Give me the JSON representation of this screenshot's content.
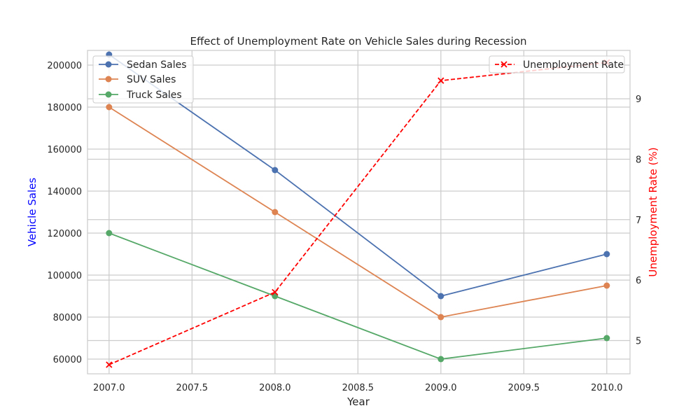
{
  "chart_data": {
    "type": "line",
    "title": "Effect of Unemployment Rate on Vehicle Sales during Recession",
    "xlabel": "Year",
    "ylabel": "Vehicle Sales",
    "y2label": "Unemployment Rate (%)",
    "x": [
      2007,
      2008,
      2009,
      2010
    ],
    "xlim": [
      2006.87,
      2010.14
    ],
    "ylim": [
      53000,
      207000
    ],
    "y2lim": [
      4.45,
      9.8
    ],
    "x_ticks": [
      "2007.0",
      "2007.5",
      "2008.0",
      "2008.5",
      "2009.0",
      "2009.5",
      "2010.0"
    ],
    "y_ticks": [
      "60000",
      "80000",
      "100000",
      "120000",
      "140000",
      "160000",
      "180000",
      "200000"
    ],
    "y2_ticks": [
      "5",
      "6",
      "7",
      "8",
      "9"
    ],
    "grid": true,
    "legend_left_position": "upper left",
    "legend_right_position": "upper right",
    "series": [
      {
        "name": "Sedan Sales",
        "axis": "left",
        "color": "#4c72b0",
        "marker": "circle",
        "style": "solid",
        "values": [
          205000,
          150000,
          90000,
          110000
        ]
      },
      {
        "name": "SUV Sales",
        "axis": "left",
        "color": "#dd8452",
        "marker": "circle",
        "style": "solid",
        "values": [
          180000,
          130000,
          80000,
          95000
        ]
      },
      {
        "name": "Truck Sales",
        "axis": "left",
        "color": "#55a868",
        "marker": "circle",
        "style": "solid",
        "values": [
          120000,
          90000,
          60000,
          70000
        ]
      },
      {
        "name": "Unemployment Rate",
        "axis": "right",
        "color": "#ff0000",
        "marker": "x",
        "style": "dashed",
        "values": [
          4.6,
          5.8,
          9.3,
          9.6
        ]
      }
    ]
  }
}
